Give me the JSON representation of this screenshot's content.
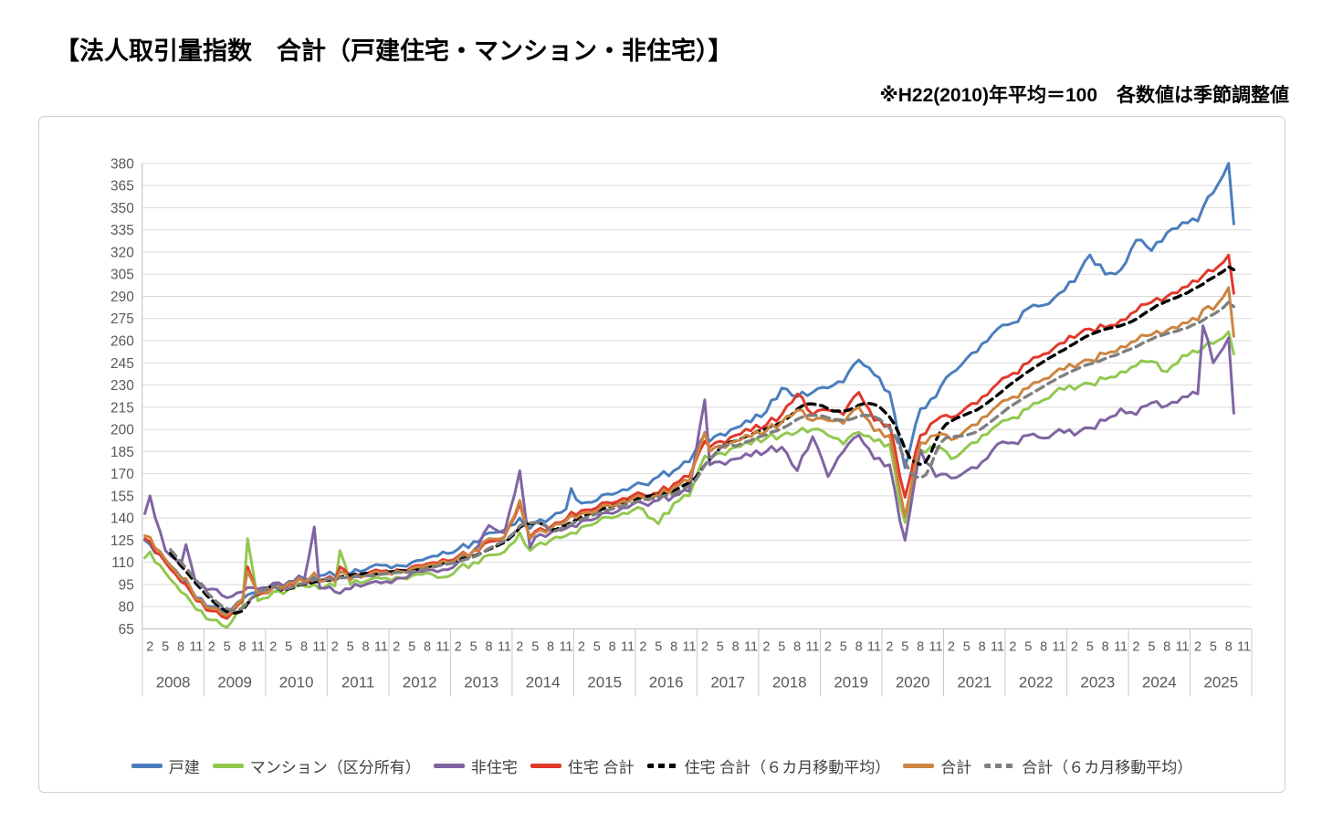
{
  "page": {
    "title": "【法人取引量指数　合計（戸建住宅・マンション・非住宅）】",
    "note": "※H22(2010)年平均＝100　各数値は季節調整値"
  },
  "chart_data": {
    "type": "line",
    "title": "法人取引量指数　合計（戸建住宅・マンション・非住宅）",
    "subtitle": "H22(2010)年平均＝100　各数値は季節調整値",
    "x_axis": {
      "start_year": 2008,
      "end_year": 2025,
      "month_tick_labels": [
        2,
        5,
        8,
        11
      ],
      "years": [
        2008,
        2009,
        2010,
        2011,
        2012,
        2013,
        2014,
        2015,
        2016,
        2017,
        2018,
        2019,
        2020,
        2021,
        2022,
        2023,
        2024,
        2025
      ]
    },
    "y_axis": {
      "min": 65,
      "max": 380,
      "step": 15,
      "grid": true
    },
    "note_on_sampling": "values estimated from plot; anchor_months are month offsets from Jan 2008 (0 = 2008-01)",
    "anchor_months": [
      0,
      1,
      4,
      7,
      8,
      10,
      13,
      16,
      19,
      20,
      22,
      25,
      28,
      31,
      33,
      34,
      37,
      38,
      40,
      43,
      46,
      49,
      52,
      55,
      58,
      61,
      64,
      67,
      70,
      73,
      75,
      76,
      79,
      82,
      83,
      85,
      88,
      91,
      94,
      97,
      100,
      103,
      106,
      109,
      110,
      112,
      115,
      118,
      121,
      124,
      127,
      130,
      133,
      136,
      139,
      142,
      145,
      147,
      148,
      151,
      154,
      157,
      160,
      163,
      166,
      169,
      172,
      175,
      178,
      181,
      184,
      187,
      190,
      193,
      196,
      199,
      202,
      205,
      206,
      208,
      211,
      212
    ],
    "series": [
      {
        "name": "戸建",
        "color": "#4A7EBD",
        "dash": null,
        "values": [
          125,
          122,
          112,
          100,
          97,
          86,
          80,
          76,
          85,
          88,
          90,
          94,
          97,
          99,
          100,
          101,
          101,
          103,
          102,
          105,
          108,
          108,
          110,
          113,
          117,
          119,
          124,
          130,
          132,
          140,
          133,
          137,
          140,
          146,
          160,
          150,
          152,
          156,
          159,
          163,
          168,
          172,
          178,
          196,
          192,
          197,
          201,
          205,
          212,
          228,
          222,
          225,
          228,
          232,
          247,
          237,
          225,
          190,
          174,
          214,
          222,
          238,
          248,
          258,
          268,
          272,
          282,
          284,
          292,
          300,
          318,
          305,
          308,
          328,
          321,
          333,
          340,
          341,
          350,
          360,
          380,
          339
        ]
      },
      {
        "name": "マンション（区分所有）",
        "color": "#92C850",
        "dash": null,
        "values": [
          113,
          117,
          103,
          90,
          88,
          78,
          71,
          66,
          80,
          126,
          84,
          90,
          92,
          94,
          95,
          92,
          94,
          118,
          95,
          97,
          99,
          100,
          101,
          103,
          100,
          106,
          110,
          115,
          117,
          130,
          118,
          121,
          125,
          128,
          130,
          134,
          137,
          140,
          143,
          146,
          136,
          150,
          155,
          182,
          180,
          184,
          188,
          190,
          194,
          196,
          198,
          200,
          196,
          190,
          198,
          192,
          190,
          150,
          137,
          186,
          188,
          180,
          188,
          196,
          203,
          208,
          214,
          220,
          228,
          227,
          231,
          234,
          239,
          243,
          246,
          239,
          250,
          252,
          255,
          258,
          266,
          251
        ]
      },
      {
        "name": "非住宅",
        "color": "#8064A2",
        "dash": null,
        "values": [
          143,
          155,
          118,
          108,
          122,
          95,
          92,
          86,
          90,
          93,
          92,
          96,
          97,
          98,
          134,
          93,
          90,
          89,
          92,
          95,
          96,
          99,
          103,
          105,
          105,
          110,
          118,
          135,
          130,
          172,
          120,
          127,
          130,
          133,
          135,
          138,
          140,
          143,
          147,
          150,
          152,
          155,
          158,
          220,
          176,
          178,
          180,
          182,
          185,
          188,
          172,
          195,
          168,
          185,
          196,
          180,
          176,
          138,
          125,
          186,
          168,
          167,
          172,
          178,
          190,
          191,
          196,
          194,
          200,
          196,
          201,
          206,
          214,
          210,
          218,
          216,
          222,
          224,
          270,
          245,
          262,
          211
        ]
      },
      {
        "name": "住宅 合計",
        "color": "#E0392B",
        "dash": null,
        "values": [
          126,
          124,
          110,
          97,
          95,
          84,
          77,
          72,
          84,
          107,
          88,
          93,
          95,
          97,
          98,
          98,
          98,
          107,
          99,
          102,
          104,
          105,
          107,
          109,
          112,
          114,
          118,
          124,
          127,
          150,
          127,
          131,
          134,
          139,
          144,
          145,
          147,
          150,
          153,
          156,
          157,
          163,
          168,
          192,
          188,
          192,
          196,
          199,
          203,
          210,
          224,
          210,
          213,
          210,
          225,
          206,
          203,
          168,
          154,
          196,
          206,
          208,
          215,
          222,
          231,
          238,
          245,
          251,
          258,
          262,
          268,
          269,
          274,
          280,
          286,
          290,
          296,
          300,
          304,
          307,
          318,
          292
        ]
      },
      {
        "name": "住宅 合計（６カ月移動平均）",
        "color": "#000000",
        "dash": "dashed",
        "derived": "6-month moving average of 住宅 合計"
      },
      {
        "name": "合計",
        "color": "#CC8440",
        "dash": null,
        "values": [
          128,
          127,
          112,
          99,
          99,
          85,
          79,
          74,
          85,
          104,
          89,
          93,
          96,
          97,
          103,
          97,
          97,
          104,
          98,
          101,
          103,
          104,
          106,
          108,
          111,
          113,
          118,
          126,
          127,
          152,
          126,
          130,
          133,
          138,
          142,
          143,
          145,
          148,
          151,
          154,
          155,
          161,
          165,
          198,
          185,
          189,
          192,
          195,
          199,
          205,
          213,
          206,
          206,
          204,
          215,
          199,
          196,
          158,
          141,
          191,
          196,
          193,
          200,
          208,
          216,
          222,
          228,
          234,
          241,
          242,
          247,
          251,
          256,
          260,
          264,
          267,
          272,
          274,
          281,
          281,
          296,
          263
        ]
      },
      {
        "name": "合計（６カ月移動平均）",
        "color": "#7F7F7F",
        "dash": "dashed",
        "derived": "6-month moving average of 合計"
      }
    ],
    "legend": [
      "戸建",
      "マンション（区分所有）",
      "非住宅",
      "住宅 合計",
      "住宅 合計（６カ月移動平均）",
      "合計",
      "合計（６カ月移動平均）"
    ],
    "legend_position": "bottom"
  }
}
